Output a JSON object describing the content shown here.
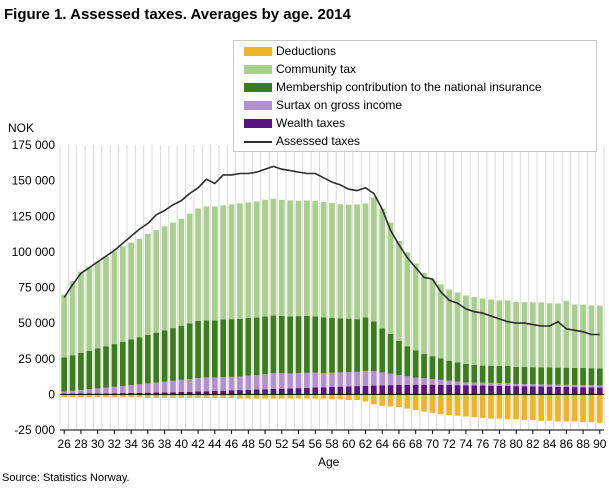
{
  "title": "Figure 1. Assessed taxes. Averages by age. 2014",
  "y_unit": "NOK",
  "x_title": "Age",
  "source": "Source: Statistics Norway.",
  "colors": {
    "deductions": "#f0b429",
    "community_tax": "#a8cf8c",
    "membership": "#3a7d1a",
    "surtax": "#b590cf",
    "wealth": "#5a1480",
    "assessed": "#2d2d2d"
  },
  "legend": [
    {
      "label": "Deductions",
      "color": "#f0b429",
      "kind": "box"
    },
    {
      "label": "Community tax",
      "color": "#a8cf8c",
      "kind": "box"
    },
    {
      "label": "Membership contribution to the national insurance",
      "color": "#3a7d1a",
      "kind": "box"
    },
    {
      "label": "Surtax on gross income",
      "color": "#b590cf",
      "kind": "box"
    },
    {
      "label": "Wealth taxes",
      "color": "#5a1480",
      "kind": "box"
    },
    {
      "label": "Assessed taxes",
      "color": "#2d2d2d",
      "kind": "line"
    }
  ],
  "chart_data": {
    "type": "bar",
    "stacked": true,
    "title": "Figure 1. Assessed taxes. Averages by age. 2014",
    "ylabel": "NOK",
    "xlabel": "Age",
    "ylim": [
      -25000,
      175000
    ],
    "yticks": [
      -25000,
      0,
      25000,
      50000,
      75000,
      100000,
      125000,
      150000,
      175000
    ],
    "ytick_labels": [
      "-25 000",
      "0",
      "25 000",
      "50 000",
      "75 000",
      "100 000",
      "125 000",
      "150 000",
      "175 000"
    ],
    "xtick_labels": [
      "26",
      "28",
      "30",
      "32",
      "34",
      "36",
      "38",
      "40",
      "42",
      "44",
      "46",
      "48",
      "50",
      "52",
      "54",
      "56",
      "58",
      "60",
      "62",
      "64",
      "66",
      "68",
      "70",
      "72",
      "74",
      "76",
      "78",
      "80",
      "82",
      "84",
      "86",
      "88",
      "90"
    ],
    "grid": "vertical",
    "legend_position": "top-right",
    "x": [
      26,
      27,
      28,
      29,
      30,
      31,
      32,
      33,
      34,
      35,
      36,
      37,
      38,
      39,
      40,
      41,
      42,
      43,
      44,
      45,
      46,
      47,
      48,
      49,
      50,
      51,
      52,
      53,
      54,
      55,
      56,
      57,
      58,
      59,
      60,
      61,
      62,
      63,
      64,
      65,
      66,
      67,
      68,
      69,
      70,
      71,
      72,
      73,
      74,
      75,
      76,
      77,
      78,
      79,
      80,
      81,
      82,
      83,
      84,
      85,
      86,
      87,
      88,
      89,
      90
    ],
    "series": [
      {
        "name": "Deductions",
        "values": [
          -2000,
          -2000,
          -2000,
          -2000,
          -2000,
          -2000,
          -2000,
          -2000,
          -2000,
          -2000,
          -2500,
          -2500,
          -2500,
          -2500,
          -2500,
          -2500,
          -2500,
          -2500,
          -2500,
          -2500,
          -2500,
          -3000,
          -3000,
          -3000,
          -3000,
          -3000,
          -3000,
          -3000,
          -3000,
          -3000,
          -3000,
          -3000,
          -3500,
          -3500,
          -4000,
          -4000,
          -5000,
          -7000,
          -8000,
          -8500,
          -9000,
          -10000,
          -11000,
          -12000,
          -13000,
          -14000,
          -14500,
          -15000,
          -15500,
          -16000,
          -16500,
          -17000,
          -17000,
          -17500,
          -17500,
          -18000,
          -18000,
          -18500,
          -18500,
          -19000,
          -19000,
          -19000,
          -19500,
          -19500,
          -20000
        ]
      },
      {
        "name": "Wealth taxes",
        "values": [
          500,
          500,
          600,
          600,
          700,
          700,
          800,
          900,
          1000,
          1100,
          1200,
          1300,
          1400,
          1500,
          1700,
          1800,
          2000,
          2200,
          2400,
          2600,
          2800,
          3000,
          3200,
          3400,
          3600,
          3800,
          4000,
          4200,
          4400,
          4600,
          4800,
          5000,
          5200,
          5400,
          5600,
          5800,
          6000,
          6200,
          6400,
          6500,
          6600,
          6700,
          6800,
          6800,
          6800,
          6700,
          6600,
          6500,
          6400,
          6300,
          6200,
          6100,
          6000,
          5900,
          5800,
          5700,
          5600,
          5500,
          5400,
          5300,
          5200,
          5100,
          5000,
          4900,
          4800
        ]
      },
      {
        "name": "Surtax on gross income",
        "values": [
          1500,
          2000,
          2500,
          3000,
          3500,
          4000,
          4500,
          5000,
          5500,
          6000,
          6500,
          7000,
          7500,
          8000,
          8500,
          9000,
          9500,
          9700,
          9500,
          9500,
          9500,
          9500,
          10000,
          10000,
          10500,
          11000,
          11000,
          10500,
          10500,
          10500,
          10500,
          10000,
          10000,
          10000,
          10000,
          10000,
          10500,
          10000,
          9000,
          8000,
          7000,
          6000,
          5000,
          4500,
          4000,
          3500,
          3000,
          2500,
          2000,
          2000,
          2000,
          2000,
          2000,
          2000,
          1500,
          1500,
          1500,
          1500,
          1500,
          1500,
          1500,
          1500,
          1500,
          1500,
          1500
        ]
      },
      {
        "name": "Membership contribution to the national insurance",
        "values": [
          24000,
          25000,
          26000,
          27000,
          28000,
          29000,
          30000,
          31000,
          32000,
          33000,
          34000,
          35000,
          36000,
          37000,
          38000,
          39000,
          40000,
          40000,
          40000,
          40500,
          40500,
          40500,
          40500,
          40500,
          40500,
          40500,
          40000,
          40000,
          40000,
          40000,
          39500,
          39000,
          38500,
          38000,
          37500,
          37000,
          37500,
          35000,
          31000,
          28000,
          24000,
          21000,
          19000,
          17000,
          16000,
          15000,
          14000,
          13500,
          13000,
          12500,
          12000,
          12000,
          12000,
          12000,
          12000,
          12000,
          12000,
          12000,
          12000,
          12000,
          12000,
          12000,
          12000,
          12000,
          12000
        ]
      },
      {
        "name": "Community tax",
        "values": [
          44000,
          52000,
          57000,
          59000,
          61000,
          63000,
          65000,
          67000,
          68000,
          69000,
          71000,
          72000,
          73000,
          74000,
          75000,
          77000,
          79000,
          80000,
          80000,
          80000,
          80500,
          81000,
          81000,
          81500,
          82000,
          82000,
          81500,
          81500,
          81000,
          81000,
          81000,
          81000,
          80500,
          80000,
          80000,
          80500,
          80000,
          87000,
          84000,
          78000,
          70000,
          66000,
          61000,
          57000,
          54000,
          52000,
          50000,
          49000,
          48000,
          47500,
          47000,
          46500,
          46000,
          46000,
          45500,
          45500,
          45500,
          45500,
          45000,
          45000,
          47000,
          44500,
          44500,
          44000,
          44000
        ]
      }
    ],
    "line": {
      "name": "Assessed taxes",
      "values": [
        68000,
        77000,
        85000,
        89000,
        93000,
        97000,
        101000,
        106000,
        111000,
        116000,
        120000,
        126000,
        129000,
        133000,
        136000,
        141000,
        145000,
        151000,
        148000,
        154000,
        154000,
        155000,
        155000,
        156000,
        158000,
        160000,
        158000,
        157000,
        156000,
        155000,
        155000,
        152000,
        149000,
        147000,
        144000,
        143000,
        145000,
        141000,
        130000,
        115000,
        105000,
        96000,
        89000,
        82000,
        81000,
        72000,
        66000,
        64000,
        60000,
        58000,
        57000,
        55000,
        53000,
        51000,
        50000,
        50000,
        49000,
        48000,
        48000,
        51000,
        46000,
        45000,
        44000,
        42000,
        42000
      ]
    }
  }
}
